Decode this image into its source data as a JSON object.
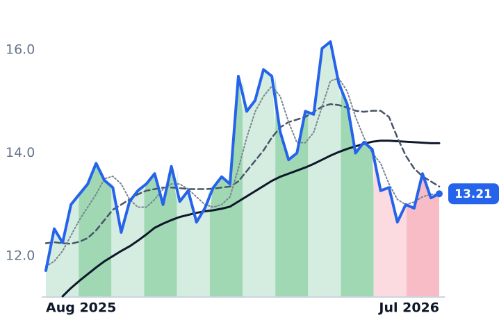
{
  "chart_data": {
    "type": "line",
    "categories": [
      "Aug 2025",
      null,
      null,
      null,
      null,
      null,
      null,
      null,
      null,
      null,
      null,
      null,
      null,
      null,
      null,
      null,
      null,
      null,
      null,
      null,
      null,
      null,
      null,
      null,
      null,
      null,
      null,
      null,
      null,
      null,
      null,
      null,
      null,
      null,
      null,
      null,
      null,
      null,
      null,
      null,
      null,
      null,
      null,
      null,
      null,
      null,
      null,
      "Jul 2026"
    ],
    "series": [
      {
        "color": "#2563eb",
        "style": "solid",
        "width": 4,
        "values": [
          11.72,
          12.53,
          12.26,
          13.0,
          13.2,
          13.4,
          13.8,
          13.47,
          13.33,
          12.46,
          13.06,
          13.27,
          13.4,
          13.6,
          13.0,
          13.74,
          13.06,
          13.27,
          12.66,
          12.93,
          13.33,
          13.54,
          13.4,
          15.49,
          14.81,
          15.02,
          15.62,
          15.49,
          14.41,
          13.87,
          14.0,
          14.81,
          14.75,
          16.03,
          16.16,
          15.35,
          14.95,
          14.0,
          14.21,
          14.07,
          13.27,
          13.33,
          12.66,
          13.0,
          12.93,
          13.6,
          13.13,
          13.21
        ]
      },
      {
        "color": "#7b8494",
        "style": "dotted",
        "width": 2,
        "values": [
          11.8,
          11.9,
          12.1,
          12.4,
          12.7,
          12.95,
          13.2,
          13.5,
          13.55,
          13.4,
          13.1,
          12.95,
          12.95,
          13.1,
          13.3,
          13.4,
          13.4,
          13.3,
          13.15,
          13.0,
          12.95,
          13.0,
          13.15,
          13.7,
          14.3,
          14.8,
          15.1,
          15.3,
          15.1,
          14.6,
          14.2,
          14.2,
          14.4,
          14.9,
          15.4,
          15.45,
          15.2,
          14.7,
          14.3,
          14.0,
          13.8,
          13.4,
          13.1,
          13.0,
          13.05,
          13.15,
          13.2,
          13.2
        ]
      },
      {
        "color": "#475569",
        "style": "dashed",
        "width": 2.5,
        "values": [
          12.25,
          12.27,
          12.25,
          12.24,
          12.28,
          12.35,
          12.5,
          12.7,
          12.9,
          13.0,
          13.1,
          13.2,
          13.27,
          13.3,
          13.33,
          13.33,
          13.32,
          13.3,
          13.3,
          13.3,
          13.31,
          13.33,
          13.35,
          13.45,
          13.65,
          13.85,
          14.05,
          14.3,
          14.5,
          14.6,
          14.65,
          14.7,
          14.8,
          14.9,
          14.95,
          14.93,
          14.88,
          14.82,
          14.8,
          14.82,
          14.82,
          14.7,
          14.3,
          13.95,
          13.7,
          13.55,
          13.45,
          13.35
        ]
      },
      {
        "color": "#0f172a",
        "style": "solid",
        "width": 3,
        "values": [
          null,
          null,
          11.22,
          11.38,
          11.52,
          11.65,
          11.78,
          11.9,
          12.0,
          12.1,
          12.19,
          12.3,
          12.42,
          12.55,
          12.63,
          12.7,
          12.76,
          12.8,
          12.84,
          12.87,
          12.89,
          12.92,
          12.96,
          13.06,
          13.16,
          13.26,
          13.36,
          13.46,
          13.54,
          13.6,
          13.66,
          13.72,
          13.79,
          13.87,
          13.95,
          14.02,
          14.08,
          14.13,
          14.18,
          14.22,
          14.24,
          14.24,
          14.23,
          14.22,
          14.21,
          14.2,
          14.19,
          14.19
        ]
      }
    ],
    "fill_colors": [
      "#d4ede0",
      "#9fd8b3",
      "#d4ede0",
      "#9fd8b3",
      "#d4ede0",
      "#9fd8b3",
      "#d4ede0",
      "#9fd8b3",
      "#d4ede0",
      "#9fd8b3",
      "#fcdbe0",
      "#f8bcc7"
    ],
    "ylim": [
      11.22,
      16.7
    ],
    "yticks": [
      {
        "value": 12,
        "label": "12.0"
      },
      {
        "value": 14,
        "label": "14.0"
      },
      {
        "value": 16,
        "label": "16.0"
      }
    ],
    "grid": false
  }
}
